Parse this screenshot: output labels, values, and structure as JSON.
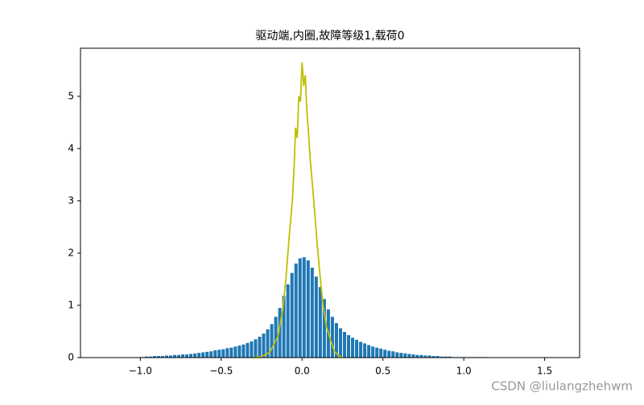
{
  "chart_data": {
    "type": "histogram",
    "title": "驱动端,内圈,故障等级1,载荷0",
    "bins": [
      -1,
      -0.975,
      -0.95,
      -0.925,
      -0.9,
      -0.875,
      -0.85,
      -0.825,
      -0.8,
      -0.775,
      -0.75,
      -0.725,
      -0.7,
      -0.675,
      -0.65,
      -0.625,
      -0.6,
      -0.575,
      -0.55,
      -0.525,
      -0.5,
      -0.475,
      -0.45,
      -0.425,
      -0.4,
      -0.375,
      -0.35,
      -0.325,
      -0.3,
      -0.275,
      -0.25,
      -0.225,
      -0.2,
      -0.175,
      -0.15,
      -0.125,
      -0.1,
      -0.075,
      -0.05,
      -0.025,
      0,
      0.025,
      0.05,
      0.075,
      0.1,
      0.125,
      0.15,
      0.175,
      0.2,
      0.225,
      0.25,
      0.275,
      0.3,
      0.325,
      0.35,
      0.375,
      0.4,
      0.425,
      0.45,
      0.475,
      0.5,
      0.525,
      0.55,
      0.575,
      0.6,
      0.625,
      0.65,
      0.675,
      0.7,
      0.725,
      0.75,
      0.775,
      0.8,
      0.825,
      0.85,
      0.875,
      0.9,
      0.925,
      0.95,
      0.975,
      1,
      1.025,
      1.05,
      1.075,
      1.1,
      1.125,
      1.15
    ],
    "values": [
      0.01,
      0.02,
      0.02,
      0.03,
      0.03,
      0.03,
      0.04,
      0.04,
      0.05,
      0.05,
      0.06,
      0.06,
      0.07,
      0.08,
      0.09,
      0.1,
      0.11,
      0.12,
      0.14,
      0.15,
      0.16,
      0.18,
      0.19,
      0.21,
      0.23,
      0.25,
      0.28,
      0.31,
      0.35,
      0.4,
      0.46,
      0.54,
      0.64,
      0.78,
      0.95,
      1.18,
      1.4,
      1.62,
      1.8,
      1.9,
      1.92,
      1.86,
      1.72,
      1.55,
      1.35,
      1.12,
      0.92,
      0.78,
      0.66,
      0.56,
      0.49,
      0.43,
      0.38,
      0.34,
      0.3,
      0.27,
      0.24,
      0.21,
      0.19,
      0.17,
      0.15,
      0.13,
      0.12,
      0.1,
      0.09,
      0.08,
      0.07,
      0.06,
      0.05,
      0.05,
      0.04,
      0.04,
      0.03,
      0.03,
      0.02,
      0.02,
      0.02,
      0.01,
      0.01,
      0.01,
      0.01,
      0.01,
      0.01,
      0.01,
      0.01,
      0.01
    ],
    "color": "#1f77b4",
    "line": {
      "type": "line",
      "color": "#bfbf00",
      "x": [
        -0.3,
        -0.25,
        -0.2,
        -0.15,
        -0.12,
        -0.1,
        -0.08,
        -0.06,
        -0.05,
        -0.04,
        -0.03,
        -0.02,
        -0.01,
        0,
        0.01,
        0.02,
        0.03,
        0.04,
        0.05,
        0.07,
        0.09,
        0.11,
        0.13,
        0.15,
        0.18,
        0.2,
        0.23,
        0.25
      ],
      "values": [
        0,
        0.02,
        0.1,
        0.4,
        0.9,
        1.5,
        2.3,
        3.0,
        3.6,
        4.4,
        4.2,
        5.0,
        4.9,
        5.65,
        5.2,
        5.4,
        4.7,
        4.3,
        3.8,
        3.1,
        2.3,
        1.6,
        1.0,
        0.6,
        0.3,
        0.12,
        0.03,
        0
      ]
    },
    "xlim": [
      -1.37,
      1.716
    ],
    "ylim": [
      0,
      5.92
    ],
    "xticks": [
      {
        "value": -1,
        "label": "−1.0"
      },
      {
        "value": -0.5,
        "label": "−0.5"
      },
      {
        "value": 0,
        "label": "0.0"
      },
      {
        "value": 0.5,
        "label": "0.5"
      },
      {
        "value": 1,
        "label": "1.0"
      },
      {
        "value": 1.5,
        "label": "1.5"
      }
    ],
    "yticks": [
      0,
      1,
      2,
      3,
      4,
      5
    ],
    "watermark": "CSDN @liulangzhehwm"
  }
}
